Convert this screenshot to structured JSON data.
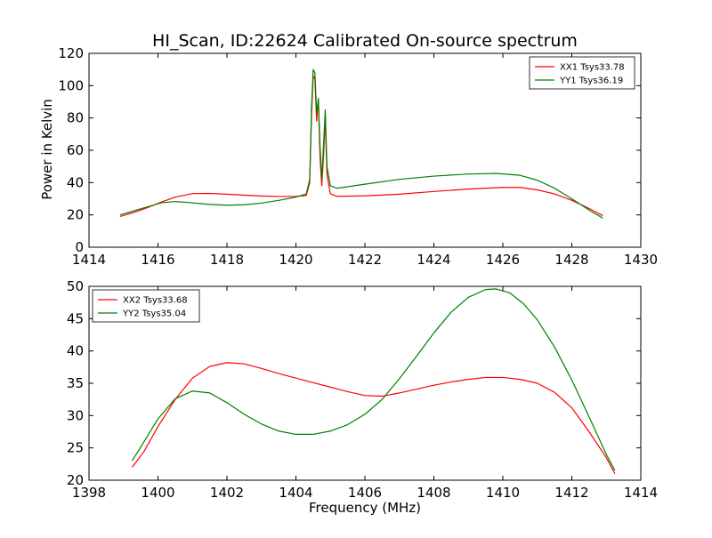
{
  "chart_data": [
    {
      "type": "line",
      "title": "HI_Scan, ID:22624 Calibrated On-source spectrum",
      "xlabel": "",
      "ylabel": "Power in Kelvin",
      "xlim": [
        1414,
        1430
      ],
      "ylim": [
        0,
        120
      ],
      "xticks": [
        1414,
        1416,
        1418,
        1420,
        1422,
        1424,
        1426,
        1428,
        1430
      ],
      "yticks": [
        0,
        20,
        40,
        60,
        80,
        100,
        120
      ],
      "grid": false,
      "legend_position": "top-right",
      "series": [
        {
          "name": "XX1 Tsys33.78",
          "color": "#ff0000",
          "points": [
            [
              1414.9,
              19
            ],
            [
              1415.3,
              21.5
            ],
            [
              1415.7,
              24.5
            ],
            [
              1416.1,
              28
            ],
            [
              1416.5,
              31
            ],
            [
              1417.0,
              33.2
            ],
            [
              1417.5,
              33.3
            ],
            [
              1418.0,
              32.8
            ],
            [
              1418.5,
              32.2
            ],
            [
              1419.0,
              31.7
            ],
            [
              1419.5,
              31.4
            ],
            [
              1420.0,
              31.4
            ],
            [
              1420.3,
              32.0
            ],
            [
              1420.4,
              40.0
            ],
            [
              1420.45,
              80.0
            ],
            [
              1420.5,
              106.0
            ],
            [
              1420.55,
              104.0
            ],
            [
              1420.6,
              78.0
            ],
            [
              1420.65,
              92.0
            ],
            [
              1420.7,
              55.0
            ],
            [
              1420.75,
              38.0
            ],
            [
              1420.8,
              56.0
            ],
            [
              1420.85,
              80.0
            ],
            [
              1420.9,
              45.0
            ],
            [
              1421.0,
              33.0
            ],
            [
              1421.2,
              31.5
            ],
            [
              1422.0,
              31.8
            ],
            [
              1423.0,
              32.8
            ],
            [
              1424.0,
              34.5
            ],
            [
              1425.0,
              36.0
            ],
            [
              1426.0,
              37.0
            ],
            [
              1426.5,
              37.0
            ],
            [
              1427.0,
              35.5
            ],
            [
              1427.5,
              33.0
            ],
            [
              1428.0,
              29.0
            ],
            [
              1428.5,
              24.0
            ],
            [
              1428.9,
              19.5
            ]
          ]
        },
        {
          "name": "YY1 Tsys36.19",
          "color": "#008000",
          "points": [
            [
              1414.9,
              20
            ],
            [
              1415.3,
              22.5
            ],
            [
              1415.7,
              25.0
            ],
            [
              1416.1,
              27.5
            ],
            [
              1416.5,
              28.3
            ],
            [
              1417.0,
              27.5
            ],
            [
              1417.5,
              26.5
            ],
            [
              1418.0,
              26.0
            ],
            [
              1418.5,
              26.3
            ],
            [
              1419.0,
              27.3
            ],
            [
              1419.5,
              29.0
            ],
            [
              1420.0,
              31.0
            ],
            [
              1420.3,
              33.0
            ],
            [
              1420.4,
              42.0
            ],
            [
              1420.45,
              85.0
            ],
            [
              1420.5,
              110.0
            ],
            [
              1420.55,
              108.0
            ],
            [
              1420.6,
              83.0
            ],
            [
              1420.65,
              92.0
            ],
            [
              1420.7,
              62.0
            ],
            [
              1420.75,
              42.0
            ],
            [
              1420.8,
              63.0
            ],
            [
              1420.85,
              85.0
            ],
            [
              1420.9,
              50.0
            ],
            [
              1421.0,
              38.0
            ],
            [
              1421.2,
              36.5
            ],
            [
              1422.0,
              39.0
            ],
            [
              1423.0,
              42.0
            ],
            [
              1424.0,
              44.0
            ],
            [
              1425.0,
              45.3
            ],
            [
              1425.8,
              45.7
            ],
            [
              1426.5,
              44.5
            ],
            [
              1427.0,
              41.5
            ],
            [
              1427.5,
              36.5
            ],
            [
              1428.0,
              30.0
            ],
            [
              1428.5,
              23.0
            ],
            [
              1428.9,
              18.0
            ]
          ]
        }
      ]
    },
    {
      "type": "line",
      "title": "",
      "xlabel": "Frequency (MHz)",
      "ylabel": "",
      "xlim": [
        1398,
        1414
      ],
      "ylim": [
        20,
        50
      ],
      "xticks": [
        1398,
        1400,
        1402,
        1404,
        1406,
        1408,
        1410,
        1412,
        1414
      ],
      "yticks": [
        20,
        25,
        30,
        35,
        40,
        45,
        50
      ],
      "grid": false,
      "legend_position": "top-left",
      "series": [
        {
          "name": "XX2 Tsys33.68",
          "color": "#ff0000",
          "points": [
            [
              1399.25,
              22.0
            ],
            [
              1399.6,
              24.5
            ],
            [
              1400.0,
              28.3
            ],
            [
              1400.5,
              32.5
            ],
            [
              1401.0,
              35.8
            ],
            [
              1401.5,
              37.6
            ],
            [
              1402.0,
              38.2
            ],
            [
              1402.5,
              38.0
            ],
            [
              1403.0,
              37.3
            ],
            [
              1403.5,
              36.5
            ],
            [
              1404.0,
              35.8
            ],
            [
              1404.5,
              35.1
            ],
            [
              1405.0,
              34.4
            ],
            [
              1405.5,
              33.7
            ],
            [
              1406.0,
              33.1
            ],
            [
              1406.5,
              33.0
            ],
            [
              1407.0,
              33.5
            ],
            [
              1407.5,
              34.1
            ],
            [
              1408.0,
              34.7
            ],
            [
              1408.5,
              35.2
            ],
            [
              1409.0,
              35.6
            ],
            [
              1409.5,
              35.9
            ],
            [
              1410.0,
              35.9
            ],
            [
              1410.5,
              35.6
            ],
            [
              1411.0,
              35.0
            ],
            [
              1411.5,
              33.6
            ],
            [
              1412.0,
              31.2
            ],
            [
              1412.5,
              27.5
            ],
            [
              1413.0,
              23.5
            ],
            [
              1413.25,
              21.0
            ]
          ]
        },
        {
          "name": "YY2 Tsys35.04",
          "color": "#008000",
          "points": [
            [
              1399.25,
              23.0
            ],
            [
              1399.6,
              26.0
            ],
            [
              1400.0,
              29.5
            ],
            [
              1400.5,
              32.6
            ],
            [
              1401.0,
              33.8
            ],
            [
              1401.5,
              33.5
            ],
            [
              1402.0,
              32.0
            ],
            [
              1402.5,
              30.2
            ],
            [
              1403.0,
              28.7
            ],
            [
              1403.5,
              27.6
            ],
            [
              1404.0,
              27.1
            ],
            [
              1404.5,
              27.1
            ],
            [
              1405.0,
              27.6
            ],
            [
              1405.5,
              28.6
            ],
            [
              1406.0,
              30.2
            ],
            [
              1406.5,
              32.5
            ],
            [
              1407.0,
              35.7
            ],
            [
              1407.5,
              39.2
            ],
            [
              1408.0,
              42.8
            ],
            [
              1408.5,
              46.0
            ],
            [
              1409.0,
              48.3
            ],
            [
              1409.5,
              49.5
            ],
            [
              1409.8,
              49.6
            ],
            [
              1410.2,
              49.0
            ],
            [
              1410.6,
              47.3
            ],
            [
              1411.0,
              44.8
            ],
            [
              1411.5,
              40.6
            ],
            [
              1412.0,
              35.5
            ],
            [
              1412.5,
              29.8
            ],
            [
              1413.0,
              24.0
            ],
            [
              1413.25,
              21.5
            ]
          ]
        }
      ]
    }
  ]
}
